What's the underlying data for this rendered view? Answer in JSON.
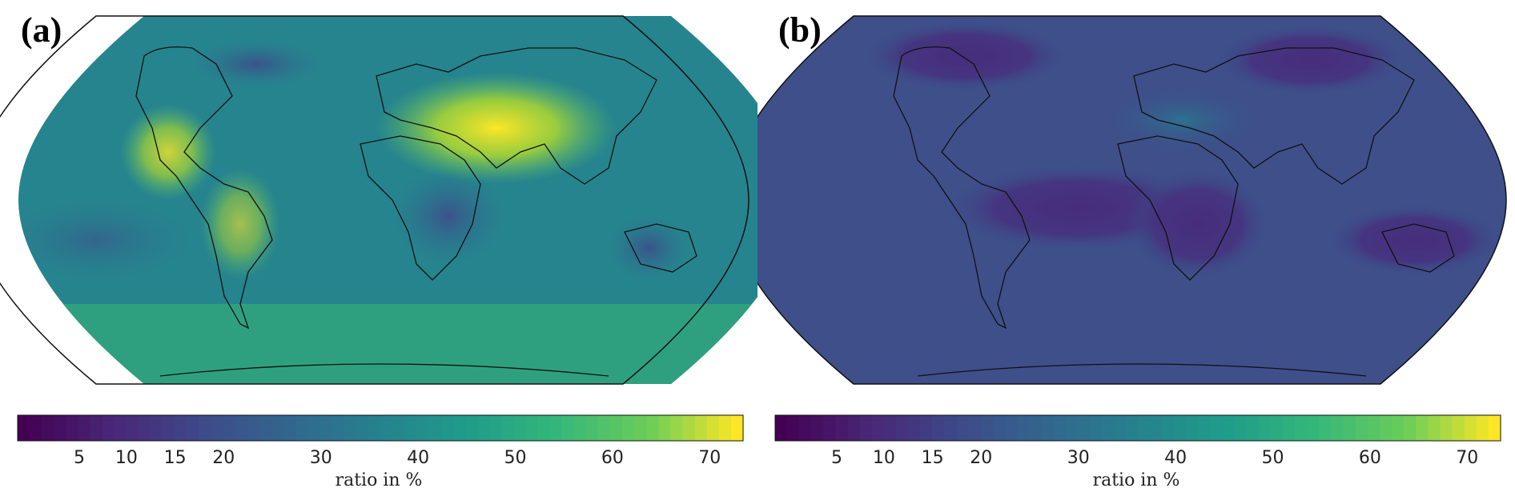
{
  "panels": [
    {
      "id": "a",
      "label": "(a)",
      "colorbar": {
        "label": "ratio in %",
        "ticks": [
          "5",
          "10",
          "15",
          "20",
          "30",
          "40",
          "50",
          "60",
          "70"
        ],
        "tick_values": [
          5,
          10,
          15,
          20,
          30,
          40,
          50,
          60,
          70
        ],
        "range": [
          0,
          75
        ]
      }
    },
    {
      "id": "b",
      "label": "(b)",
      "colorbar": {
        "label": "ratio in %",
        "ticks": [
          "5",
          "10",
          "15",
          "20",
          "30",
          "40",
          "50",
          "60",
          "70"
        ],
        "tick_values": [
          5,
          10,
          15,
          20,
          30,
          40,
          50,
          60,
          70
        ],
        "range": [
          0,
          75
        ]
      }
    }
  ],
  "colors": {
    "viridis_dark": "#440154",
    "viridis_purple": "#46337e",
    "viridis_blue": "#3b528b",
    "viridis_teal": "#21918c",
    "viridis_green": "#5ec962",
    "viridis_yellow": "#fde725",
    "coastline": "#111111"
  }
}
